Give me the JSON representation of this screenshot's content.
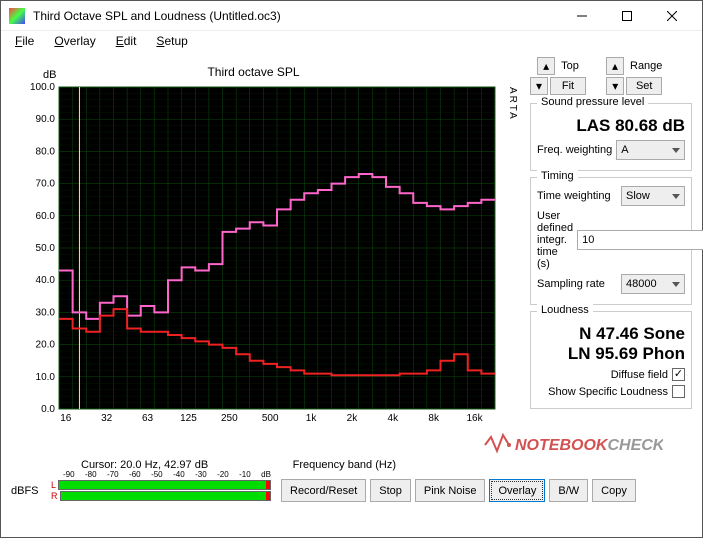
{
  "window": {
    "title": "Third Octave SPL and Loudness (Untitled.oc3)"
  },
  "menu": {
    "file": "File",
    "overlay": "Overlay",
    "edit": "Edit",
    "setup": "Setup"
  },
  "chart": {
    "type": "step-line",
    "title": "Third octave SPL",
    "ylabel": "dB",
    "xlabel": "Frequency band (Hz)",
    "arta_label": "ARTA",
    "background_color": "#000000",
    "grid_color": "#0e4a0e",
    "border_color": "#116611",
    "axis_text_color": "#000000",
    "ylim": [
      0,
      100
    ],
    "ytick_step": 10,
    "yticks": [
      "0.0",
      "10.0",
      "20.0",
      "30.0",
      "40.0",
      "50.0",
      "60.0",
      "70.0",
      "80.0",
      "90.0",
      "100.0"
    ],
    "xticks_labels": [
      "16",
      "32",
      "63",
      "125",
      "250",
      "500",
      "1k",
      "2k",
      "4k",
      "8k",
      "16k"
    ],
    "freq_bands_hz": [
      16,
      20,
      25,
      31.5,
      40,
      50,
      63,
      80,
      100,
      125,
      160,
      200,
      250,
      315,
      400,
      500,
      630,
      800,
      1000,
      1250,
      1600,
      2000,
      2500,
      3150,
      4000,
      5000,
      6300,
      8000,
      10000,
      12500,
      16000,
      20000
    ],
    "series": [
      {
        "name": "pink",
        "color": "#ff66cc",
        "line_width": 2,
        "values_db": [
          43,
          30,
          28,
          33,
          35,
          29,
          32,
          30,
          40,
          44,
          43,
          45,
          55,
          56,
          58,
          57,
          62,
          65,
          67,
          68,
          70,
          72,
          73,
          72,
          69,
          67,
          64,
          63,
          62,
          63,
          64,
          65
        ]
      },
      {
        "name": "red",
        "color": "#ee2222",
        "line_width": 2,
        "values_db": [
          28,
          25,
          24,
          29,
          31,
          25,
          24,
          24,
          23,
          22,
          21,
          20,
          19,
          17,
          15,
          14,
          13,
          12,
          11,
          11,
          10.5,
          10.5,
          10.5,
          10.5,
          10.5,
          11,
          11,
          12,
          15,
          17,
          12,
          11
        ]
      }
    ],
    "cursor": {
      "freq_hz": 20.0,
      "db": 42.97,
      "label": "Cursor:   20.0 Hz, 42.97 dB",
      "line_color": "#ffff00"
    }
  },
  "nav": {
    "top": "Top",
    "fit": "Fit",
    "range": "Range",
    "set": "Set"
  },
  "spl": {
    "group": "Sound pressure level",
    "value": "LAS 80.68 dB",
    "freq_weighting_label": "Freq. weighting",
    "freq_weighting": "A"
  },
  "timing": {
    "group": "Timing",
    "time_weighting_label": "Time weighting",
    "time_weighting": "Slow",
    "integ_label": "User defined integr. time (s)",
    "integ_time": "10",
    "sampling_label": "Sampling rate",
    "sampling_rate": "48000"
  },
  "loudness": {
    "group": "Loudness",
    "sone": "N 47.46 Sone",
    "phon": "LN 95.69 Phon",
    "diffuse_label": "Diffuse field",
    "diffuse_checked": true,
    "show_specific_label": "Show Specific Loudness",
    "show_specific_checked": false
  },
  "meters": {
    "label": "dBFS",
    "left": "L",
    "right": "R",
    "scale": [
      "-90",
      "-80",
      "-70",
      "-60",
      "-50",
      "-40",
      "-30",
      "-20",
      "-10",
      "dB"
    ],
    "bar_color": "#00dd00",
    "clip_color": "#ff0000",
    "fill_percent": 100
  },
  "buttons": {
    "record": "Record/Reset",
    "stop": "Stop",
    "pink": "Pink Noise",
    "overlay": "Overlay",
    "bw": "B/W",
    "copy": "Copy"
  },
  "watermark": {
    "text1": "NOTEBOOK",
    "text2": "CHECK",
    "color1": "#cc3333",
    "color2": "#888888"
  }
}
